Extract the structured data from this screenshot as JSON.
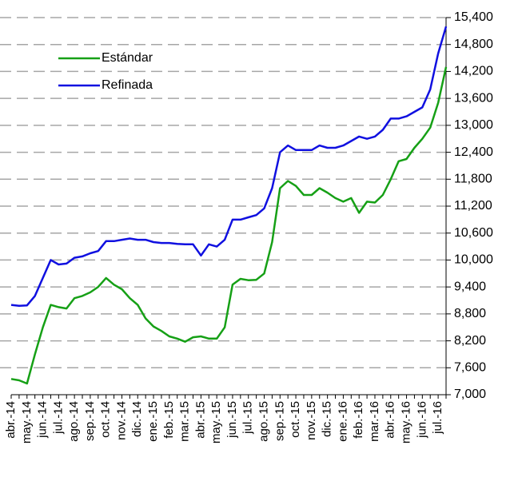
{
  "chart_data": {
    "type": "line",
    "categories": [
      "abr.-14",
      null,
      "may.-14",
      null,
      "jun.-14",
      null,
      "jul.-14",
      null,
      "ago.-14",
      null,
      "sep.-14",
      null,
      "oct.-14",
      null,
      "nov.-14",
      null,
      "dic.-14",
      null,
      "ene.-15",
      null,
      "feb.-15",
      null,
      "mar.-15",
      null,
      "abr.-15",
      null,
      "may.-15",
      null,
      "jun.-15",
      null,
      "jul.-15",
      null,
      "ago.-15",
      null,
      "sep.-15",
      null,
      "oct.-15",
      null,
      "nov.-15",
      null,
      "dic.-15",
      null,
      "ene.-16",
      null,
      "feb.-16",
      null,
      "mar.-16",
      null,
      "abr.-16",
      null,
      "may.-16",
      null,
      "jun.-16",
      null,
      "jul.-16",
      null
    ],
    "series": [
      {
        "name": "Estándar",
        "color": "#16a016",
        "values": [
          7350,
          7320,
          7250,
          7900,
          8500,
          9000,
          8950,
          8920,
          9150,
          9200,
          9280,
          9400,
          9600,
          9450,
          9350,
          9150,
          9000,
          8700,
          8520,
          8420,
          8300,
          8250,
          8180,
          8280,
          8300,
          8250,
          8250,
          8500,
          9450,
          9580,
          9550,
          9560,
          9700,
          10400,
          11600,
          11760,
          11650,
          11450,
          11450,
          11600,
          11500,
          11380,
          11300,
          11380,
          11050,
          11300,
          11280,
          11450,
          11800,
          12200,
          12250,
          12500,
          12700,
          12950,
          13500,
          14300
        ]
      },
      {
        "name": "Refinada",
        "color": "#1010e0",
        "values": [
          9000,
          8980,
          8990,
          9200,
          9600,
          10000,
          9900,
          9920,
          10050,
          10080,
          10150,
          10200,
          10420,
          10420,
          10450,
          10480,
          10450,
          10450,
          10400,
          10380,
          10380,
          10360,
          10350,
          10350,
          10100,
          10350,
          10300,
          10450,
          10900,
          10900,
          10950,
          11000,
          11150,
          11600,
          12400,
          12550,
          12450,
          12450,
          12450,
          12550,
          12500,
          12500,
          12550,
          12650,
          12750,
          12700,
          12750,
          12900,
          13150,
          13150,
          13200,
          13300,
          13400,
          13800,
          14600,
          15200
        ]
      }
    ],
    "ylim": [
      7000,
      15400
    ],
    "yticks": [
      {
        "value": 7000,
        "label": "7,000"
      },
      {
        "value": 7600,
        "label": "7,600"
      },
      {
        "value": 8200,
        "label": "8,200"
      },
      {
        "value": 8800,
        "label": "8,800"
      },
      {
        "value": 9400,
        "label": "9,400"
      },
      {
        "value": 10000,
        "label": "10,000"
      },
      {
        "value": 10600,
        "label": "10,600"
      },
      {
        "value": 11200,
        "label": "11,200"
      },
      {
        "value": 11800,
        "label": "11,800"
      },
      {
        "value": 12400,
        "label": "12,400"
      },
      {
        "value": 13000,
        "label": "13,000"
      },
      {
        "value": 13600,
        "label": "13,600"
      },
      {
        "value": 14200,
        "label": "14,200"
      },
      {
        "value": 14800,
        "label": "14,800"
      },
      {
        "value": 15400,
        "label": "15,400"
      }
    ],
    "grid": true,
    "legend": "upper left"
  }
}
